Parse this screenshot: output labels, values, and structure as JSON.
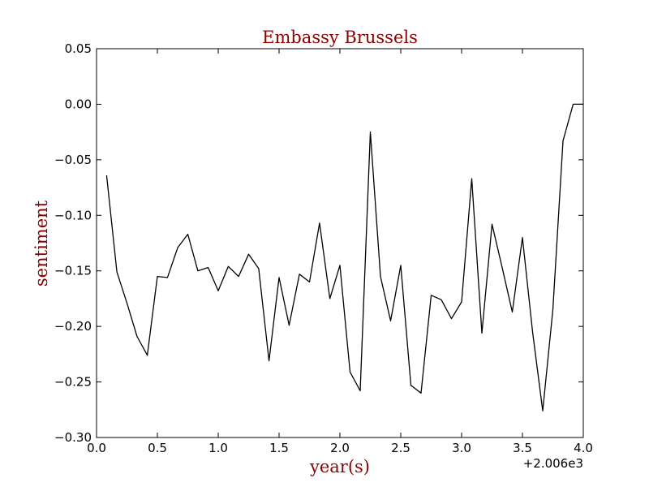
{
  "chart_data": {
    "type": "line",
    "title": "Embassy Brussels",
    "xlabel": "year(s)",
    "ylabel": "sentiment",
    "x_offset_label": "+2.006e3",
    "xlim": [
      0.0,
      4.0
    ],
    "ylim": [
      -0.3,
      0.05
    ],
    "x_ticks": [
      0.0,
      0.5,
      1.0,
      1.5,
      2.0,
      2.5,
      3.0,
      3.5,
      4.0
    ],
    "x_tick_labels": [
      "0.0",
      "0.5",
      "1.0",
      "1.5",
      "2.0",
      "2.5",
      "3.0",
      "3.5",
      "4.0"
    ],
    "y_ticks": [
      0.05,
      0.0,
      -0.05,
      -0.1,
      -0.15,
      -0.2,
      -0.25,
      -0.3
    ],
    "y_tick_labels": [
      "0.05",
      "0.00",
      "−0.05",
      "−0.10",
      "−0.15",
      "−0.20",
      "−0.25",
      "−0.30"
    ],
    "grid": false,
    "series": [
      {
        "color": "#000000",
        "x": [
          0.083,
          0.167,
          0.25,
          0.333,
          0.417,
          0.5,
          0.583,
          0.667,
          0.75,
          0.833,
          0.917,
          1.0,
          1.083,
          1.167,
          1.25,
          1.333,
          1.417,
          1.5,
          1.583,
          1.667,
          1.75,
          1.833,
          1.917,
          2.0,
          2.083,
          2.167,
          2.25,
          2.333,
          2.417,
          2.5,
          2.583,
          2.667,
          2.75,
          2.833,
          2.917,
          3.0,
          3.083,
          3.167,
          3.25,
          3.333,
          3.417,
          3.5,
          3.583,
          3.667,
          3.75,
          3.833,
          3.917,
          4.0
        ],
        "y": [
          -0.064,
          -0.151,
          -0.179,
          -0.209,
          -0.226,
          -0.155,
          -0.156,
          -0.129,
          -0.117,
          -0.15,
          -0.147,
          -0.168,
          -0.146,
          -0.155,
          -0.135,
          -0.148,
          -0.231,
          -0.156,
          -0.199,
          -0.153,
          -0.16,
          -0.107,
          -0.175,
          -0.145,
          -0.241,
          -0.258,
          -0.025,
          -0.155,
          -0.195,
          -0.145,
          -0.253,
          -0.26,
          -0.172,
          -0.176,
          -0.193,
          -0.178,
          -0.067,
          -0.206,
          -0.108,
          -0.147,
          -0.187,
          -0.12,
          -0.205,
          -0.276,
          -0.185,
          -0.033,
          0.0,
          0.0
        ]
      }
    ]
  }
}
